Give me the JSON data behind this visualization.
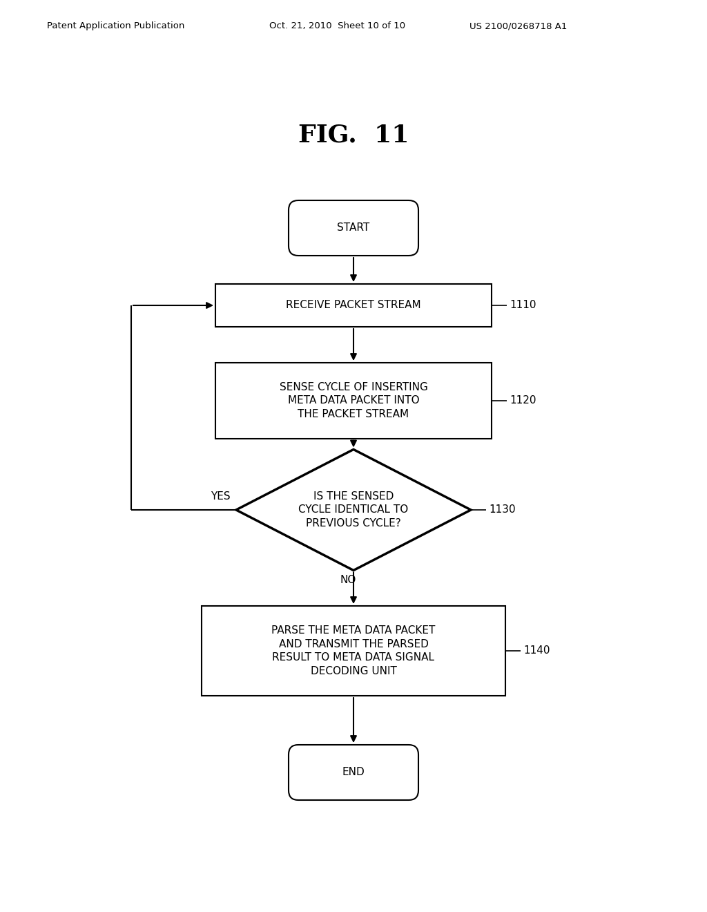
{
  "title": "FIG.  11",
  "header_left": "Patent Application Publication",
  "header_center": "Oct. 21, 2010  Sheet 10 of 10",
  "header_right": "US 2100/0268718 A1",
  "bg_color": "#ffffff",
  "text_color": "#000000",
  "start_label": "START",
  "end_label": "END",
  "box1110_label": "RECEIVE PACKET STREAM",
  "box1120_label": "SENSE CYCLE OF INSERTING\nMETA DATA PACKET INTO\nTHE PACKET STREAM",
  "diamond1130_label": "IS THE SENSED\nCYCLE IDENTICAL TO\nPREVIOUS CYCLE?",
  "box1140_label": "PARSE THE META DATA PACKET\nAND TRANSMIT THE PARSED\nRESULT TO META DATA SIGNAL\nDECODING UNIT",
  "ref1110": "1110",
  "ref1120": "1120",
  "ref1130": "1130",
  "ref1140": "1140",
  "yes_label": "YES",
  "no_label": "NO",
  "font_size_node": 11,
  "font_size_title": 26,
  "font_size_header": 9.5,
  "font_size_ref": 11
}
